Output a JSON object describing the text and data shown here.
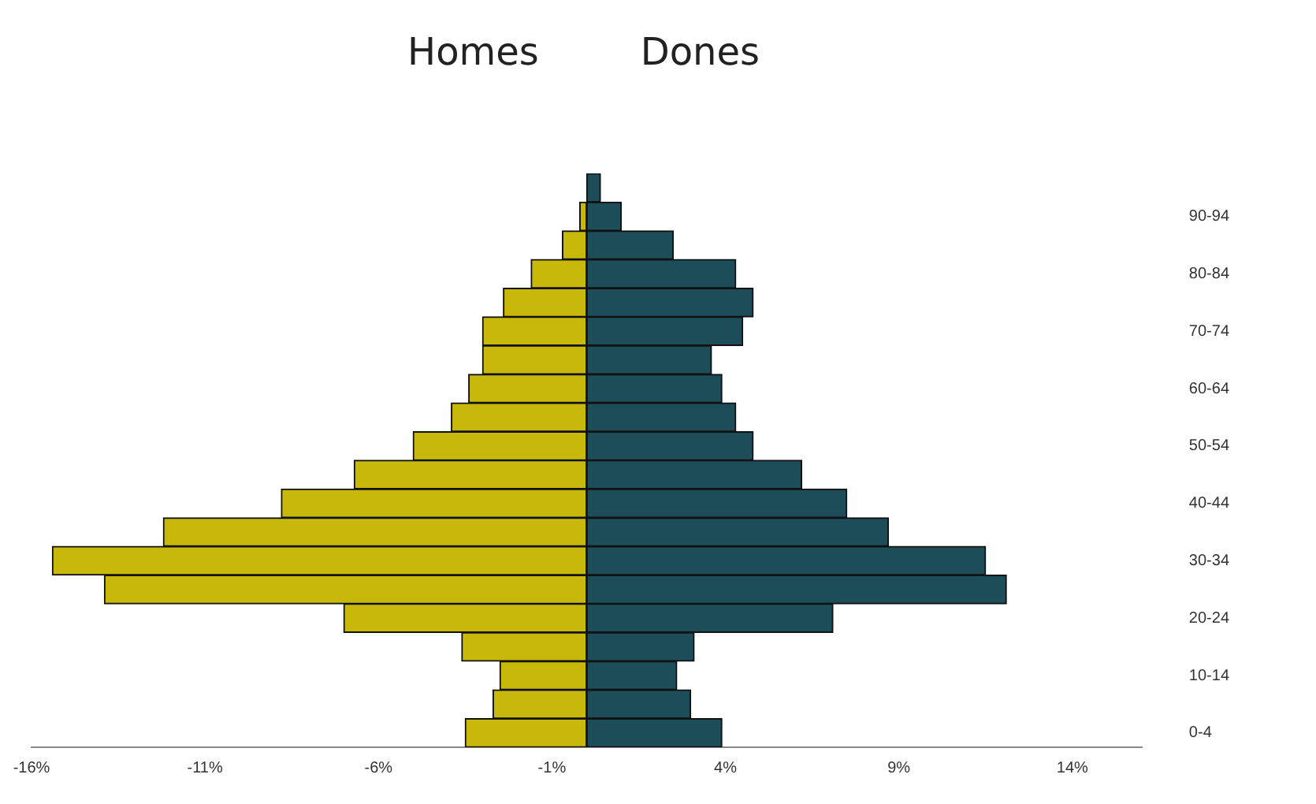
{
  "chart_data": {
    "type": "bar",
    "orientation": "horizontal",
    "stacked": true,
    "categories": [
      null,
      "90-94",
      null,
      "80-84",
      null,
      "70-74",
      null,
      "60-64",
      null,
      "50-54",
      null,
      "40-44",
      null,
      "30-34",
      null,
      "20-24",
      null,
      "10-14",
      null,
      "0-4"
    ],
    "series": [
      {
        "name": "Homes",
        "color": "#c8b80a",
        "values": [
          0,
          -0.2,
          -0.7,
          -1.6,
          -2.4,
          -3.0,
          -3.0,
          -3.4,
          -3.9,
          -5.0,
          -6.7,
          -8.8,
          -12.2,
          -15.4,
          -13.9,
          -7.0,
          -3.6,
          -2.5,
          -2.7,
          -3.5
        ]
      },
      {
        "name": "Dones",
        "color": "#1d4d58",
        "values": [
          0.4,
          1.0,
          2.5,
          4.3,
          4.8,
          4.5,
          3.6,
          3.9,
          4.3,
          4.8,
          6.2,
          7.5,
          8.7,
          11.5,
          12.1,
          7.1,
          3.1,
          2.6,
          3.0,
          3.9
        ]
      }
    ],
    "xlim": [
      -16,
      16
    ],
    "xticks": [
      {
        "value": -16,
        "label": "-16%"
      },
      {
        "value": -11,
        "label": "-11%"
      },
      {
        "value": -6,
        "label": "-6%"
      },
      {
        "value": -1,
        "label": "-1%"
      },
      {
        "value": 4,
        "label": "4%"
      },
      {
        "value": 9,
        "label": "9%"
      },
      {
        "value": 14,
        "label": "14%"
      }
    ],
    "grid": false,
    "legend": false
  }
}
